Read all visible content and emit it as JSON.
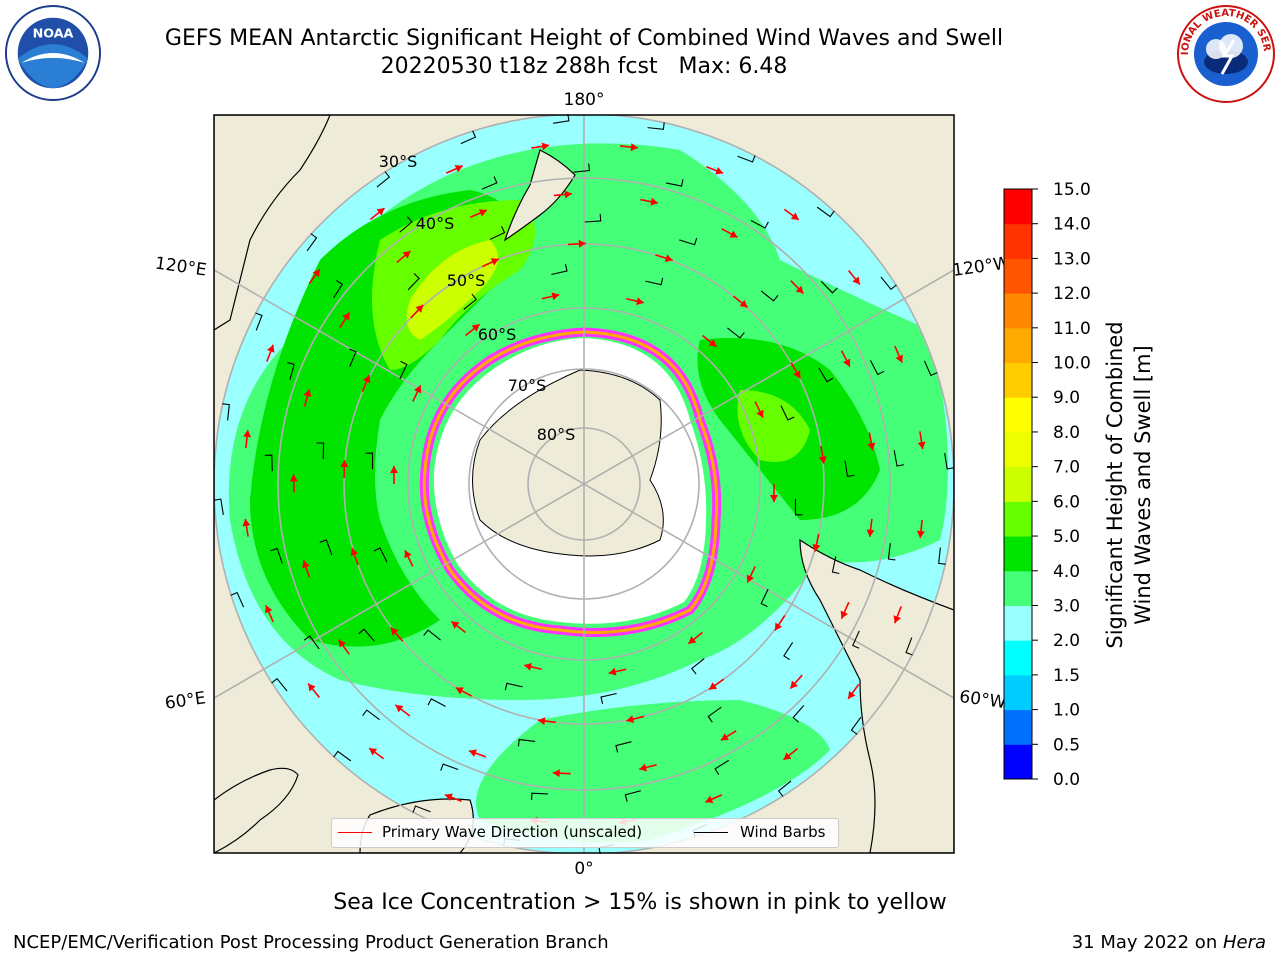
{
  "title": {
    "line1": "GEFS MEAN Antarctic Significant Height of Combined Wind Waves and Swell",
    "line2": "20220530 t18z 288h fcst   Max: 6.48"
  },
  "logos": {
    "left": "noaa-logo",
    "left_text": "NOAA",
    "right": "national-weather-service-logo",
    "right_text": "NATIONAL WEATHER SERVICE"
  },
  "map": {
    "projection": "south-polar-stereographic",
    "longitude_labels": {
      "top": "180°",
      "bottom": "0°",
      "upper_left": "120°E",
      "upper_right": "120°W",
      "lower_left": "60°E",
      "lower_right": "60°W"
    },
    "latitude_labels": [
      "30°S",
      "40°S",
      "50°S",
      "60°S",
      "70°S",
      "80°S"
    ],
    "colors": {
      "land": "#eeebd9",
      "ocean_2_3m": "#99ffff",
      "ocean_3_4m": "#44ff77",
      "ocean_4_5m": "#00e400",
      "ocean_5_6m": "#66ff00",
      "ocean_6_7m": "#ccff00",
      "sea_ice": "#ff33ff",
      "sea_ice_edge": "#ffaa00",
      "wave_arrows": "#ff0000",
      "wind_barbs": "#000000"
    }
  },
  "legend": {
    "wave_direction_label": "Primary Wave Direction (unscaled)",
    "wind_barbs_label": "Wind Barbs"
  },
  "colorbar": {
    "label_line1": "Significant Height of Combined",
    "label_line2": "Wind Waves and Swell [m]",
    "ticks": [
      "0.0",
      "0.5",
      "1.0",
      "1.5",
      "2.0",
      "3.0",
      "4.0",
      "5.0",
      "6.0",
      "7.0",
      "8.0",
      "9.0",
      "10.0",
      "11.0",
      "12.0",
      "13.0",
      "14.0",
      "15.0"
    ],
    "colors": [
      "#0000ff",
      "#0070ff",
      "#00ccff",
      "#00ffff",
      "#99ffff",
      "#44ff77",
      "#00e400",
      "#66ff00",
      "#ccff00",
      "#eeff00",
      "#ffff00",
      "#ffcc00",
      "#ffaa00",
      "#ff8800",
      "#ff5500",
      "#ff3300",
      "#ff0000"
    ]
  },
  "notes": {
    "sea_ice": "Sea Ice Concentration > 15% is shown in pink to yellow"
  },
  "footer": {
    "left": "NCEP/EMC/Verification Post Processing Product Generation Branch",
    "right_date": "31 May 2022 on ",
    "right_machine": "Hera"
  }
}
